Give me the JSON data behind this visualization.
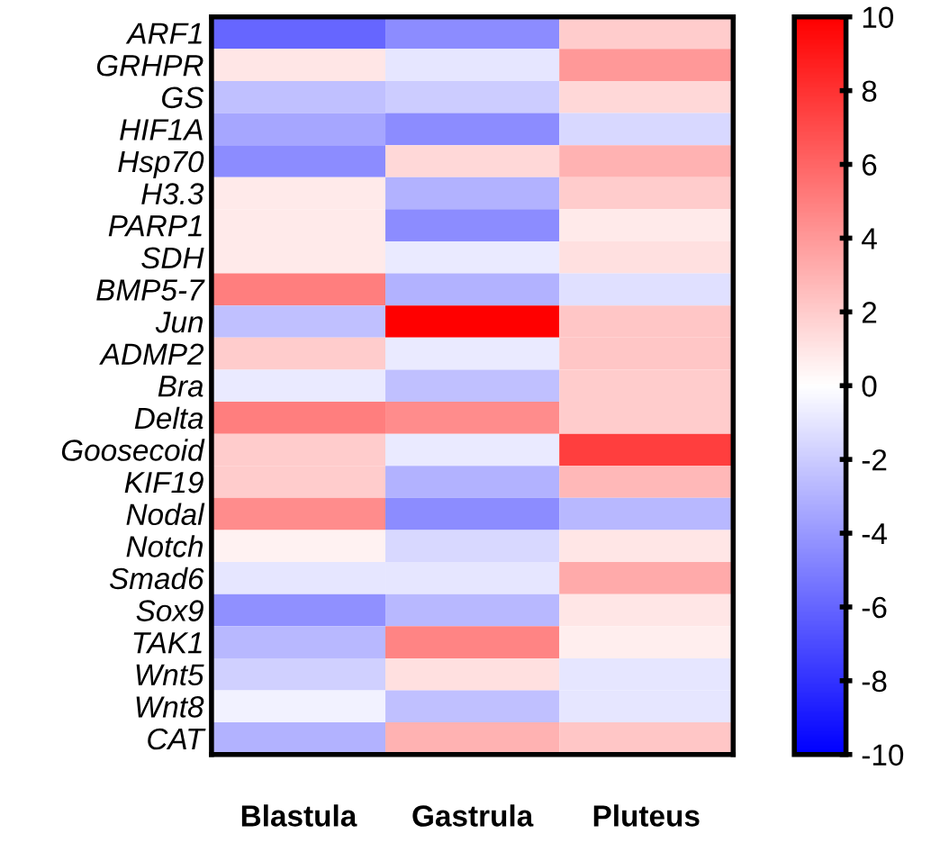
{
  "chart_data": {
    "type": "heatmap",
    "categories": [
      "Blastula",
      "Gastrula",
      "Pluteus"
    ],
    "y_categories": [
      "ARF1",
      "GRHPR",
      "GS",
      "HIF1A",
      "Hsp70",
      "H3.3",
      "PARP1",
      "SDH",
      "BMP5-7",
      "Jun",
      "ADMP2",
      "Bra",
      "Delta",
      "Goosecoid",
      "KIF19",
      "Nodal",
      "Notch",
      "Smad6",
      "Sox9",
      "TAK1",
      "Wnt5",
      "Wnt8",
      "CAT"
    ],
    "cells": [
      [
        -6,
        -4.5,
        2
      ],
      [
        1,
        -1,
        4
      ],
      [
        -2.5,
        -2,
        1.5
      ],
      [
        -3.5,
        -4.5,
        -1.5
      ],
      [
        -4.5,
        1.5,
        3
      ],
      [
        0.8,
        -3,
        2
      ],
      [
        0.8,
        -4.5,
        0.8
      ],
      [
        0.8,
        -0.8,
        1.2
      ],
      [
        5,
        -3,
        -1.2
      ],
      [
        -2.5,
        10,
        2.2
      ],
      [
        2,
        -0.8,
        2.2
      ],
      [
        -0.8,
        -2.5,
        2
      ],
      [
        5,
        4.5,
        2
      ],
      [
        2,
        -0.8,
        7.5
      ],
      [
        2,
        -3,
        2.8
      ],
      [
        4.5,
        -4.5,
        -2.8
      ],
      [
        0.5,
        -1.5,
        1
      ],
      [
        -1,
        -1,
        3.3
      ],
      [
        -4.3,
        -2.8,
        1
      ],
      [
        -2.8,
        4.8,
        0.7
      ],
      [
        -1.8,
        1.2,
        -1
      ],
      [
        -0.5,
        -2.5,
        -1
      ],
      [
        -3,
        3,
        2.2
      ]
    ],
    "clim": [
      -10,
      10
    ],
    "cticks": [
      -10,
      -8,
      -6,
      -4,
      -2,
      0,
      2,
      4,
      6,
      8,
      10
    ]
  }
}
